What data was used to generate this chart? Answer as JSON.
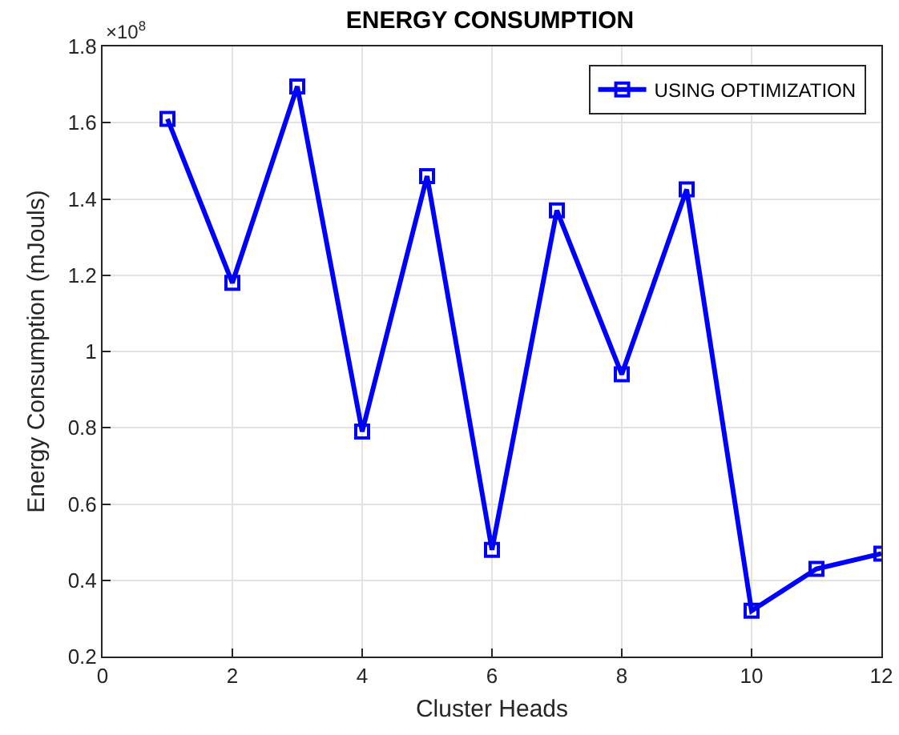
{
  "chart_data": {
    "type": "line",
    "title": "ENERGY CONSUMPTION",
    "xlabel": "Cluster Heads",
    "ylabel": "Energy Consumption (mJouls)",
    "annotations": [
      "×10$^{8}$"
    ],
    "x": [
      1,
      2,
      3,
      4,
      5,
      6,
      7,
      8,
      9,
      10,
      11,
      12
    ],
    "series": [
      {
        "name": "USING OPTIMIZATION",
        "color": "#0000ff",
        "values": [
          1.61,
          1.18,
          1.695,
          0.79,
          1.46,
          0.48,
          1.37,
          0.94,
          1.425,
          0.32,
          0.43,
          0.47
        ]
      }
    ],
    "xlim": [
      0,
      12
    ],
    "xticks": [
      0,
      2,
      4,
      6,
      8,
      10,
      12
    ],
    "ylim": [
      0.2,
      1.8
    ],
    "yticks": [
      0.2,
      0.4,
      0.6,
      0.8,
      1,
      1.2,
      1.4,
      1.6,
      1.8
    ],
    "grid": true,
    "legend": "top right",
    "marker": "square",
    "line_style": "solid"
  }
}
